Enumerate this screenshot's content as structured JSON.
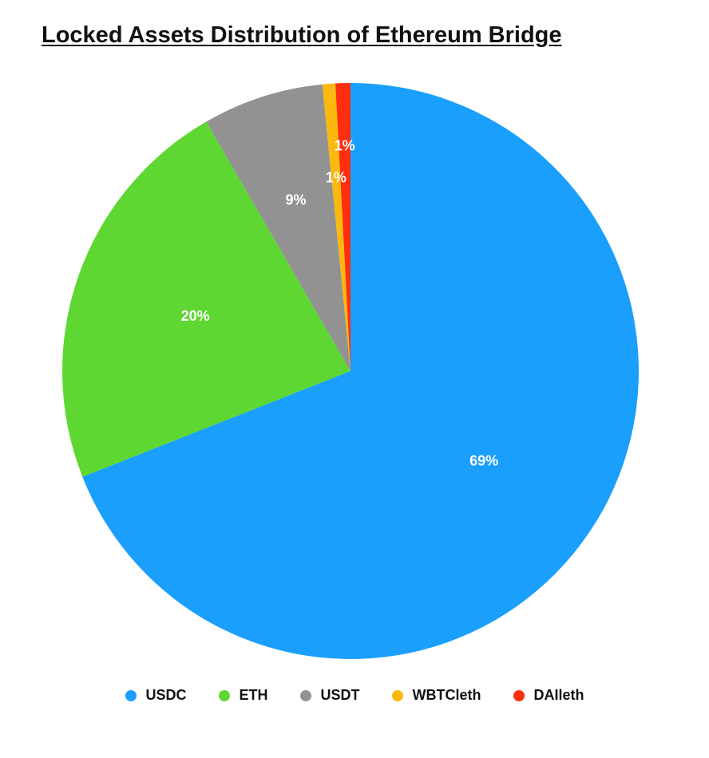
{
  "title": "Locked Assets Distribution of Ethereum Bridge",
  "chart_data": {
    "type": "pie",
    "title": "Locked Assets Distribution of Ethereum Bridge",
    "categories": [
      "USDC",
      "ETH",
      "USDT",
      "WBTCleth",
      "DAIleth"
    ],
    "values": [
      69,
      20,
      9,
      1,
      1
    ],
    "labels": [
      "69%",
      "20%",
      "9%",
      "1%",
      "1%"
    ],
    "colors": [
      "#1a9ffd",
      "#5ed733",
      "#929292",
      "#fbb80e",
      "#fe2e0e"
    ],
    "legend_position": "bottom",
    "start_angle": "top, clockwise"
  }
}
